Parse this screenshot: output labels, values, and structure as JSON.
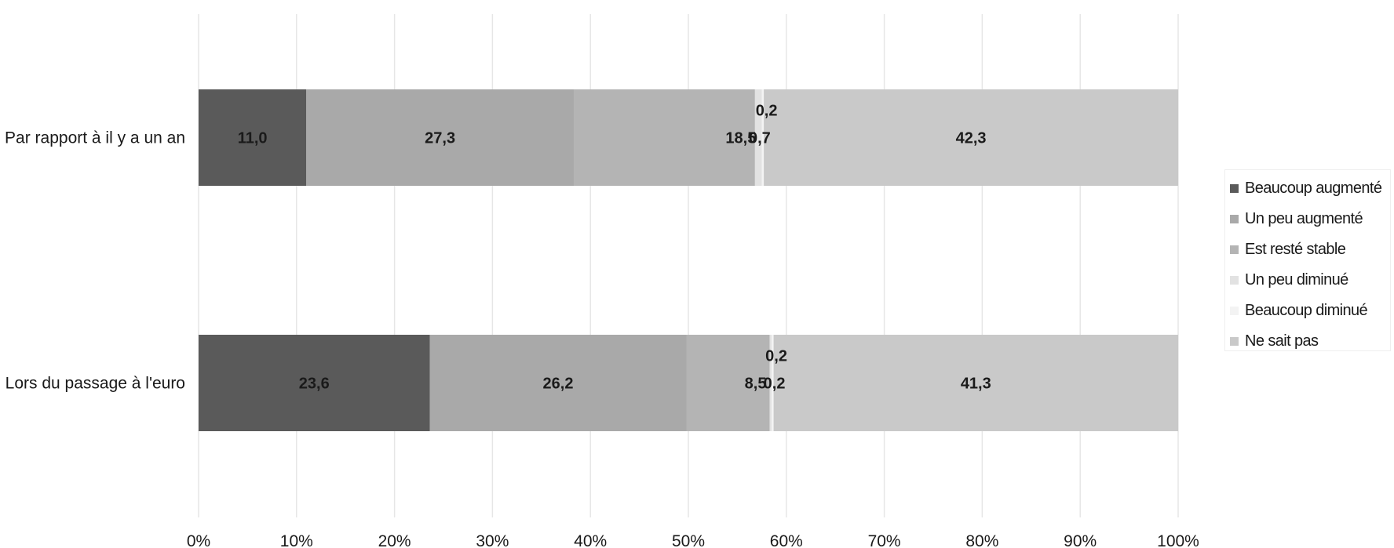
{
  "chart_data": {
    "type": "bar",
    "orientation": "horizontal",
    "stacked": "percent",
    "title": "",
    "xlabel": "",
    "ylabel": "",
    "xlim": [
      0,
      100
    ],
    "x_ticks": [
      "0%",
      "10%",
      "20%",
      "30%",
      "40%",
      "50%",
      "60%",
      "70%",
      "80%",
      "90%",
      "100%"
    ],
    "grid": "vertical",
    "legend_position": "right",
    "categories": [
      "Par rapport à il y a un an",
      "Lors du passage à l'euro"
    ],
    "series": [
      {
        "name": "Beaucoup augmenté",
        "color": "#5a5a5a",
        "values": [
          11.0,
          23.6
        ],
        "labels": [
          "11,0",
          "23,6"
        ]
      },
      {
        "name": "Un peu augmenté",
        "color": "#a9a9a9",
        "values": [
          27.3,
          26.2
        ],
        "labels": [
          "27,3",
          "26,2"
        ]
      },
      {
        "name": "Est resté stable",
        "color": "#b4b4b4",
        "values": [
          18.5,
          8.5
        ],
        "labels": [
          "18,5",
          "8,5"
        ]
      },
      {
        "name": "Un peu diminué",
        "color": "#e2e2e2",
        "values": [
          0.7,
          0.2
        ],
        "labels": [
          "0,7",
          "0,2"
        ]
      },
      {
        "name": "Beaucoup diminué",
        "color": "#f3f3f3",
        "values": [
          0.2,
          0.2
        ],
        "labels": [
          "0,2",
          "0,2"
        ]
      },
      {
        "name": "Ne sait pas",
        "color": "#c9c9c9",
        "values": [
          42.3,
          41.3
        ],
        "labels": [
          "42,3",
          "41,3"
        ]
      }
    ]
  }
}
